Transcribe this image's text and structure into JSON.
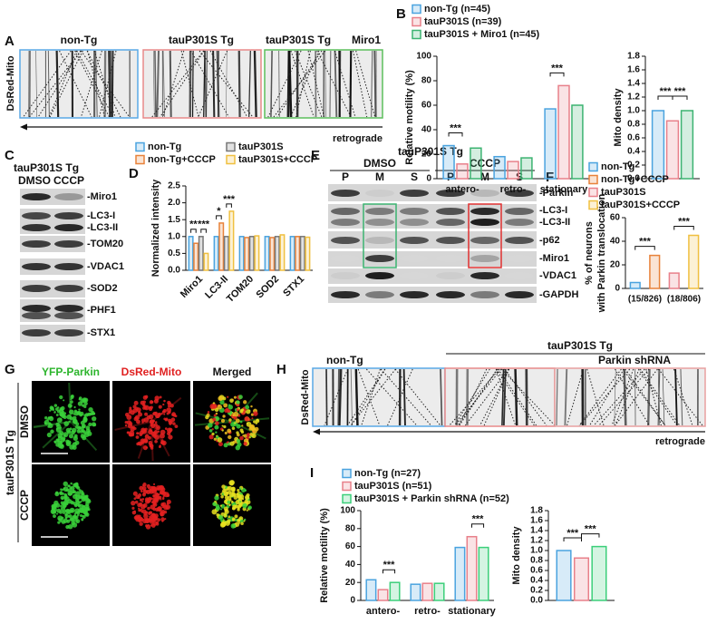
{
  "panels": [
    "A",
    "B",
    "C",
    "D",
    "E",
    "F",
    "G",
    "H",
    "I"
  ],
  "panel_a": {
    "labels": [
      "non-Tg",
      "tauP301S Tg",
      "tauP301S Tg",
      "Miro1"
    ],
    "y_label": "DsRed-Mito",
    "direction": "retrograde"
  },
  "panel_c": {
    "title": "tauP301S Tg",
    "lanes": [
      "DMSO",
      "CCCP"
    ],
    "proteins": [
      "-Miro1",
      "-LC3-I",
      "-LC3-II",
      "-TOM20",
      "-VDAC1",
      "-SOD2",
      "-PHF1",
      "-STX1"
    ]
  },
  "panel_e": {
    "title": "tauP301S Tg",
    "conditions": [
      "DMSO",
      "CCCP"
    ],
    "fractions": [
      "P",
      "M",
      "S",
      "P",
      "M",
      "S"
    ],
    "proteins": [
      "-Parkin",
      "-LC3-I",
      "-LC3-II",
      "-p62",
      "-Miro1",
      "-VDAC1",
      "-GAPDH"
    ]
  },
  "panel_g": {
    "channels": [
      "YFP-Parkin",
      "DsRed-Mito",
      "Merged"
    ],
    "group": "tauP301S Tg",
    "treatments": [
      "DMSO",
      "CCCP"
    ]
  },
  "panel_h": {
    "labels": [
      "non-Tg",
      "tauP301S Tg",
      "Parkin shRNA"
    ],
    "y_label": "DsRed-Mito",
    "direction": "retrograde"
  },
  "chart_data": [
    {
      "type": "bar",
      "y_label": "Relative motility (%)",
      "categories": [
        "antero-",
        "retro-",
        "stationary"
      ],
      "series": [
        {
          "name": "non-Tg (n=45)",
          "color": "#4aa3df",
          "values": [
            27,
            18,
            57
          ]
        },
        {
          "name": "tauP301S (n=39)",
          "color": "#e8808a",
          "values": [
            12,
            14,
            76
          ]
        },
        {
          "name": "tauP301S + Miro1 (n=45)",
          "color": "#3cb371",
          "values": [
            25,
            17,
            60
          ]
        }
      ],
      "ylim": [
        0,
        100
      ],
      "yticks": [
        0,
        20,
        40,
        60,
        80,
        100
      ],
      "annotations": [
        "***",
        "***"
      ]
    },
    {
      "type": "bar",
      "y_label": "Mito density",
      "categories": [
        null
      ],
      "series": [
        {
          "color": "#4aa3df",
          "values": [
            1.0
          ]
        },
        {
          "color": "#e8808a",
          "values": [
            0.85
          ]
        },
        {
          "color": "#3cb371",
          "values": [
            1.0
          ]
        }
      ],
      "ylim": [
        0,
        1.8
      ],
      "yticks": [
        {
          "value": 0,
          "label": "0.0"
        },
        0.2,
        0.4,
        0.6,
        0.8,
        {
          "value": 1,
          "label": "1.0"
        },
        1.2,
        1.4,
        1.6,
        1.8
      ],
      "annotations": [
        "***",
        "***"
      ]
    },
    {
      "type": "bar",
      "y_label": "Normalized intensity",
      "categories": [
        "Miro1",
        "LC3-II",
        "TOM20",
        "SOD2",
        "STX1"
      ],
      "series": [
        {
          "name": "non-Tg",
          "color": "#4aa3df",
          "values": [
            1,
            1,
            1,
            1,
            1
          ]
        },
        {
          "name": "non-Tg+CCCP",
          "color": "#e8823a",
          "values": [
            0.8,
            1.4,
            0.97,
            0.97,
            1.0
          ]
        },
        {
          "name": "tauP301S",
          "color": "#777777",
          "values": [
            1,
            1,
            1,
            1,
            1
          ]
        },
        {
          "name": "tauP301S+CCCP",
          "color": "#f0c040",
          "values": [
            0.5,
            1.75,
            1.02,
            1.05,
            0.98
          ]
        }
      ],
      "ylim": [
        0,
        2.5
      ],
      "yticks": [
        {
          "value": 0,
          "label": "0.0"
        },
        0.5,
        {
          "value": 1,
          "label": "1.0"
        },
        1.5,
        {
          "value": 2,
          "label": "2.0"
        },
        2.5
      ],
      "annotations": [
        "**",
        "***",
        "*",
        "***"
      ]
    },
    {
      "type": "bar",
      "y_label": [
        "% of neurons",
        "with Parkin translocation"
      ],
      "categories": [
        "(15/826)",
        "(18/806)"
      ],
      "series": [
        {
          "name": "non-Tg",
          "color": "#4aa3df",
          "values": [
            5,
            null
          ]
        },
        {
          "name": "non-Tg+CCCP",
          "color": "#e8823a",
          "values": [
            28,
            null
          ]
        },
        {
          "name": "tauP301S",
          "color": "#e8808a",
          "values": [
            null,
            13
          ]
        },
        {
          "name": "tauP301S+CCCP",
          "color": "#f0c040",
          "values": [
            null,
            45
          ]
        }
      ],
      "ylim": [
        0,
        60
      ],
      "yticks": [
        0,
        20,
        40,
        60
      ],
      "annotations": [
        "***",
        "***"
      ]
    },
    {
      "type": "bar",
      "y_label": "Relative motility (%)",
      "categories": [
        "antero-",
        "retro-",
        "stationary"
      ],
      "series": [
        {
          "name": "non-Tg (n=27)",
          "color": "#4aa3df",
          "values": [
            23,
            18,
            59
          ]
        },
        {
          "name": "tauP301S (n=51)",
          "color": "#e8808a",
          "values": [
            12,
            19,
            71
          ]
        },
        {
          "name": "tauP301S + Parkin shRNA (n=52)",
          "color": "#3ccf7a",
          "values": [
            20,
            19,
            59
          ]
        }
      ],
      "ylim": [
        0,
        100
      ],
      "yticks": [
        0,
        20,
        40,
        60,
        80,
        100
      ],
      "annotations": [
        "***",
        "***"
      ]
    },
    {
      "type": "bar",
      "y_label": "Mito density",
      "categories": [
        null
      ],
      "series": [
        {
          "color": "#4aa3df",
          "values": [
            1.0
          ]
        },
        {
          "color": "#e8808a",
          "values": [
            0.85
          ]
        },
        {
          "color": "#3ccf7a",
          "values": [
            1.08
          ]
        }
      ],
      "ylim": [
        0,
        1.8
      ],
      "yticks": [
        {
          "value": 0,
          "label": "0.0"
        },
        0.2,
        0.4,
        0.6,
        0.8,
        {
          "value": 1,
          "label": "1.0"
        },
        1.2,
        1.4,
        1.6,
        1.8
      ],
      "annotations": [
        "***",
        "***"
      ]
    }
  ]
}
